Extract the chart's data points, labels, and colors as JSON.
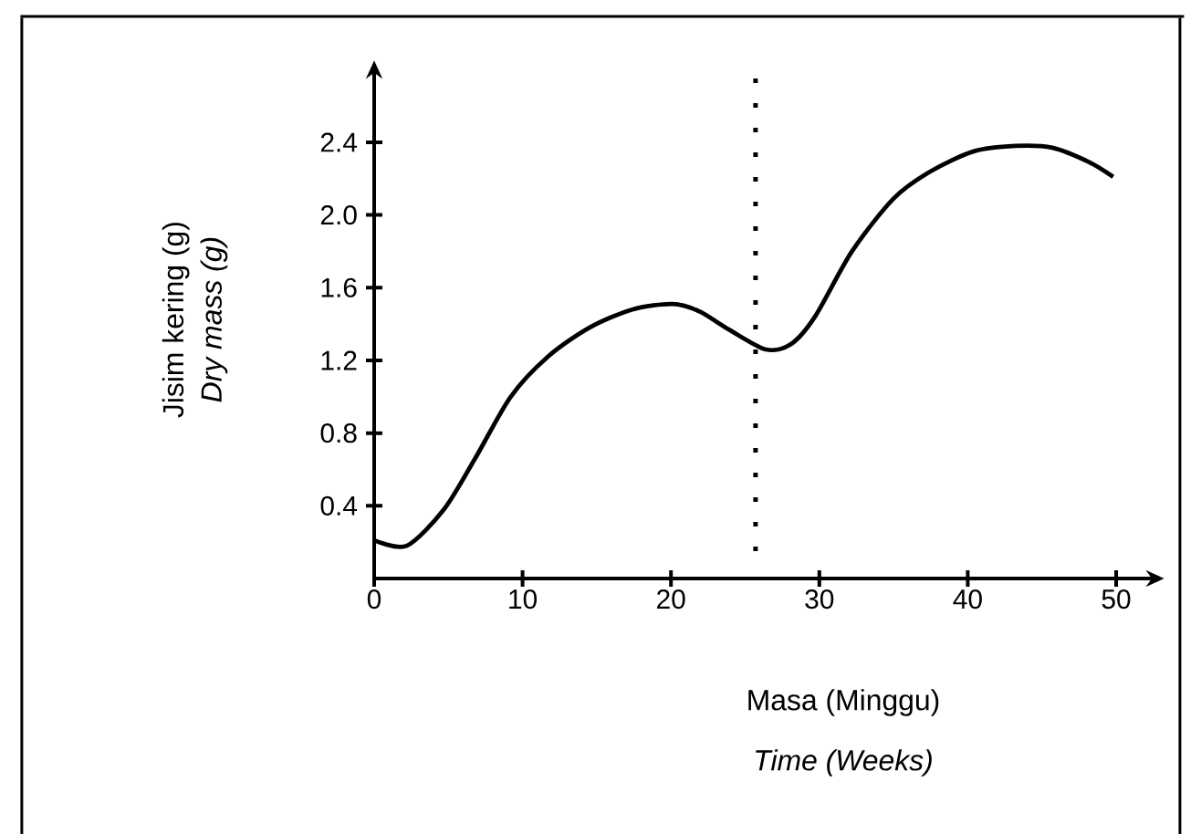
{
  "chart_data": {
    "type": "line",
    "xlabel": "Masa (Minggu)",
    "ylabel": "Jisim kering (g)",
    "annotations": [
      "Dry mass (g)",
      "Time (Weeks)"
    ],
    "x": [
      0,
      2.2,
      4.7,
      6.8,
      9.2,
      11.7,
      14.5,
      17.4,
      20.1,
      21.9,
      23.9,
      26.4,
      28.1,
      29.7,
      32.2,
      35.0,
      37.5,
      40.4,
      43.2,
      45.7,
      48.2,
      49.8
    ],
    "series": [
      {
        "color": "#000000",
        "values": [
          0.21,
          0.18,
          0.38,
          0.66,
          1.0,
          1.22,
          1.38,
          1.48,
          1.51,
          1.47,
          1.37,
          1.26,
          1.29,
          1.44,
          1.8,
          2.09,
          2.24,
          2.35,
          2.38,
          2.37,
          2.29,
          2.21
        ]
      }
    ],
    "xlim": [
      0,
      52.5
    ],
    "ylim": [
      0,
      2.85
    ],
    "xticks": [
      0,
      10,
      20,
      30,
      40,
      50
    ],
    "yticks": [
      0.4,
      0.8,
      1.2,
      1.6,
      {
        "value": 2.0,
        "label": "2.0"
      },
      2.4
    ],
    "ref_lines": [
      {
        "axis": "x",
        "value": 25.7,
        "color": "#000000",
        "line_style": "dotted"
      }
    ],
    "marker": "none",
    "line_style": "solid",
    "grid": false
  }
}
